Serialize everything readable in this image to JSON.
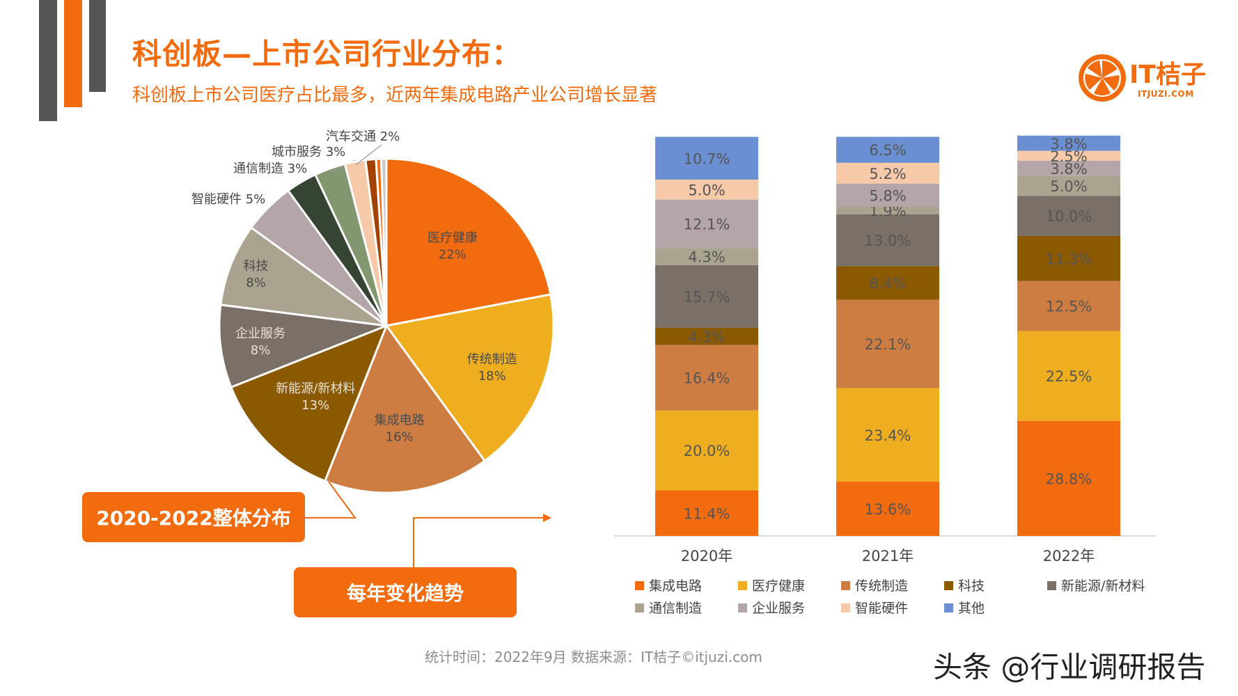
{
  "header": {
    "title": "科创板—上市公司行业分布：",
    "subtitle": "科创板上市公司医疗占比最多，近两年集成电路产业公司增长显著"
  },
  "logo": {
    "text": "IT桔子",
    "sub": "ITJUZI.COM"
  },
  "colors": {
    "accent": "#F26B0F",
    "dark_gray": "#555555"
  },
  "tags": {
    "overall": "2020-2022整体分布",
    "yearly": "每年变化趋势"
  },
  "footer": "统计时间：2022年9月  数据来源：IT桔子©itjuzi.com",
  "watermark": "头条 @行业调研报告",
  "chart_data": [
    {
      "type": "pie",
      "title": "",
      "slices": [
        {
          "name": "医疗健康",
          "value": 22,
          "label": "22%",
          "color": "#F26B0F"
        },
        {
          "name": "传统制造",
          "value": 18,
          "label": "18%",
          "color": "#EFAE20"
        },
        {
          "name": "集成电路",
          "value": 16,
          "label": "16%",
          "color": "#CE7D42"
        },
        {
          "name": "新能源/新材料",
          "value": 13,
          "label": "13%",
          "color": "#8B5A00"
        },
        {
          "name": "企业服务",
          "value": 8,
          "label": "8%",
          "color": "#7A7067"
        },
        {
          "name": "科技",
          "value": 8,
          "label": "8%",
          "color": "#A9A38F"
        },
        {
          "name": "智能硬件",
          "value": 5,
          "label": "5%",
          "color": "#B3A5A8"
        },
        {
          "name": "通信制造",
          "value": 3,
          "label": "3%",
          "color": "#354433"
        },
        {
          "name": "城市服务",
          "value": 3,
          "label": "3%",
          "color": "#829670"
        },
        {
          "name": "汽车交通",
          "value": 2,
          "label": "2%",
          "color": "#F6C9A9"
        },
        {
          "name": "",
          "value": 1,
          "label": "",
          "color": "#A34200"
        },
        {
          "name": "",
          "value": 0.5,
          "label": "",
          "color": "#F26B0F"
        },
        {
          "name": "",
          "value": 0.5,
          "label": "",
          "color": "#C9C9C9"
        }
      ]
    },
    {
      "type": "bar",
      "stacked": true,
      "categories": [
        "2020年",
        "2021年",
        "2022年"
      ],
      "ylim": [
        0,
        100
      ],
      "legend_position": "bottom",
      "series": [
        {
          "name": "集成电路",
          "color": "#F26B0F",
          "values": [
            11.4,
            13.6,
            28.8
          ],
          "labels": [
            "11.4%",
            "13.6%",
            "28.8%"
          ]
        },
        {
          "name": "医疗健康",
          "color": "#EFAE20",
          "values": [
            20.0,
            23.4,
            22.5
          ],
          "labels": [
            "20.0%",
            "23.4%",
            "22.5%"
          ]
        },
        {
          "name": "传统制造",
          "color": "#CE7D42",
          "values": [
            16.4,
            22.1,
            12.5
          ],
          "labels": [
            "16.4%",
            "22.1%",
            "12.5%"
          ]
        },
        {
          "name": "科技",
          "color": "#8B5A00",
          "values": [
            4.3,
            8.4,
            11.3
          ],
          "labels": [
            "4.3%",
            "8.4%",
            "11.3%"
          ]
        },
        {
          "name": "新能源/新材料",
          "color": "#7A7067",
          "values": [
            15.7,
            13.0,
            10.0
          ],
          "labels": [
            "15.7%",
            "13.0%",
            "10.0%"
          ]
        },
        {
          "name": "通信制造",
          "color": "#A9A38F",
          "values": [
            4.3,
            1.9,
            5.0
          ],
          "labels": [
            "4.3%",
            "1.9%",
            "5.0%"
          ]
        },
        {
          "name": "企业服务",
          "color": "#B3A5A8",
          "values": [
            12.1,
            5.8,
            3.8
          ],
          "labels": [
            "12.1%",
            "5.8%",
            "3.8%"
          ]
        },
        {
          "name": "智能硬件",
          "color": "#F6C9A9",
          "values": [
            5.0,
            5.2,
            2.5
          ],
          "labels": [
            "5.0%",
            "5.2%",
            "2.5%"
          ]
        },
        {
          "name": "其他",
          "color": "#6A8FD3",
          "values": [
            10.7,
            6.5,
            3.8
          ],
          "labels": [
            "10.7%",
            "6.5%",
            "3.8%"
          ]
        }
      ]
    }
  ]
}
